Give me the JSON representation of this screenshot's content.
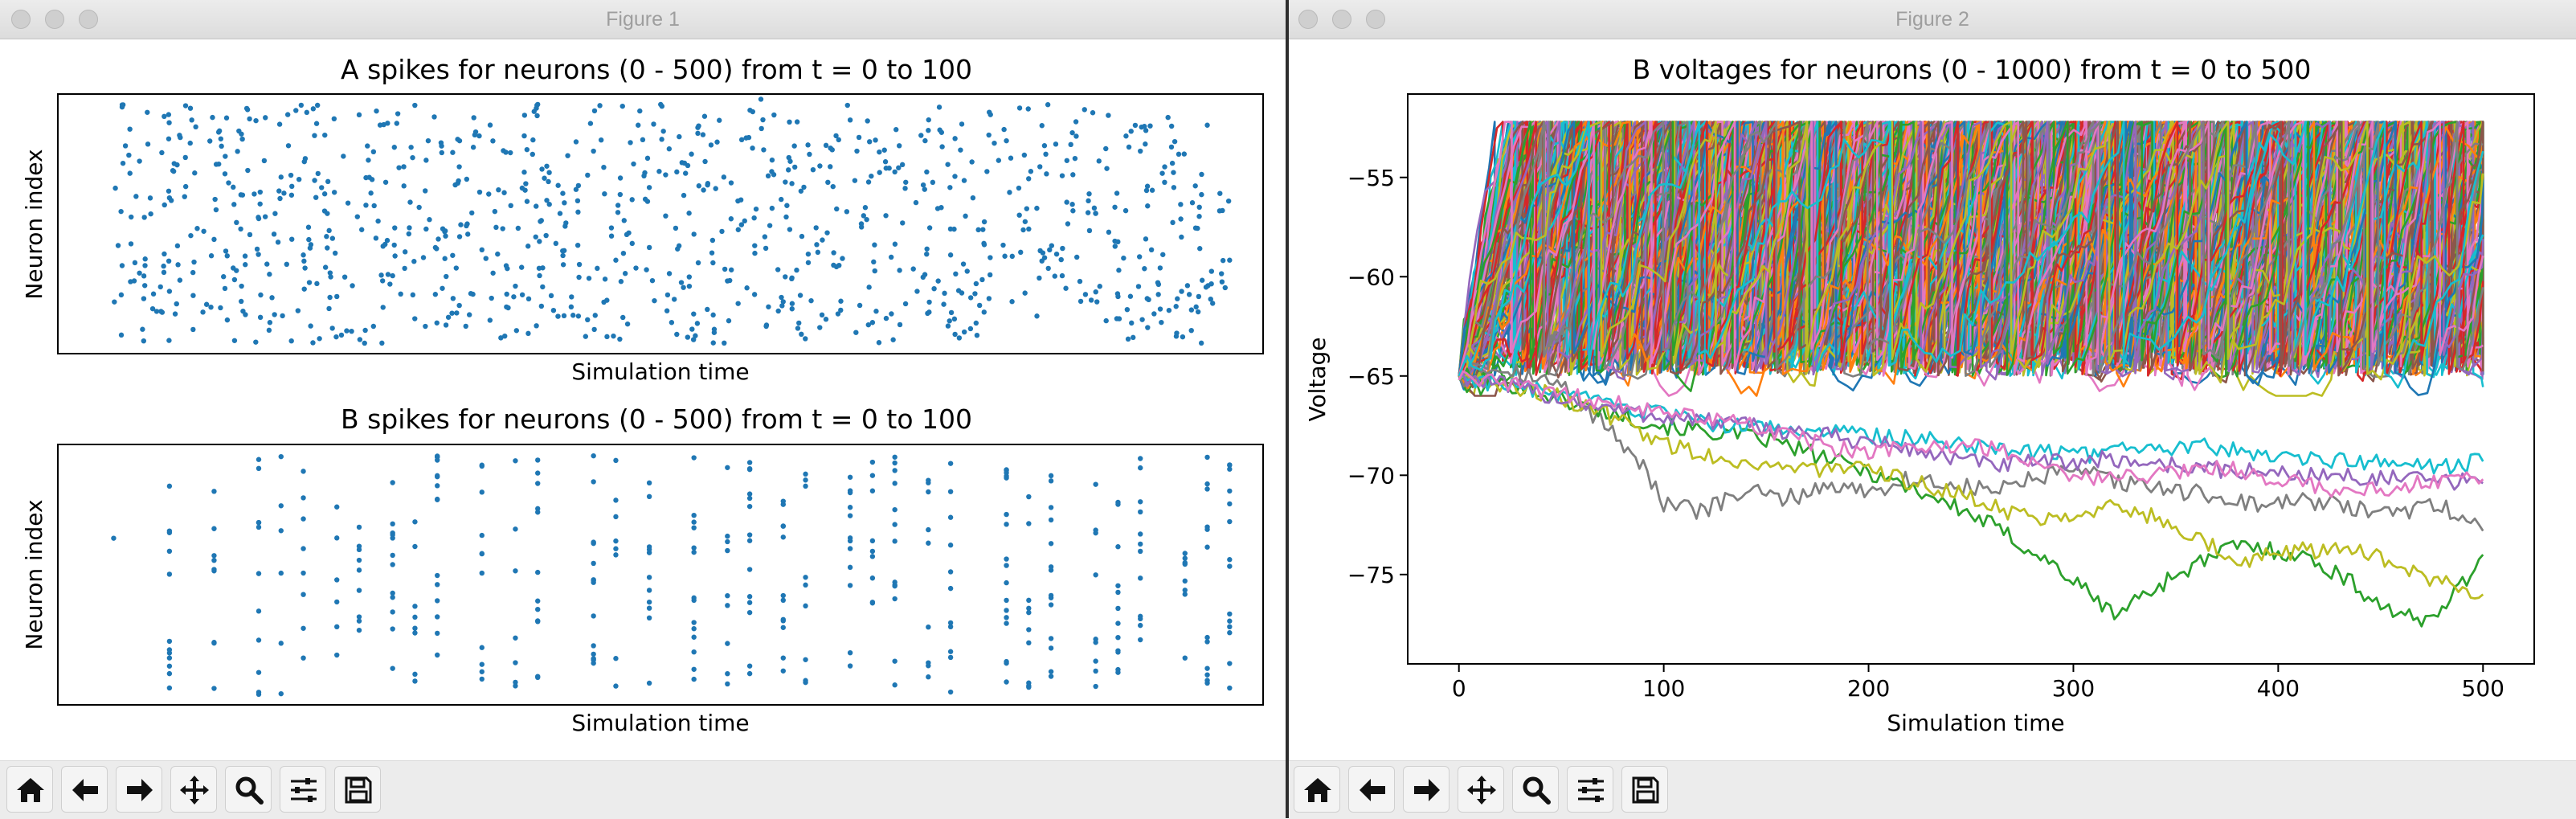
{
  "figure1": {
    "window_title": "Figure 1",
    "chart_data": [
      {
        "type": "scatter",
        "title": "A spikes for neurons (0 - 500) from t = 0 to 100",
        "xlabel": "Simulation time",
        "ylabel": "Neuron index",
        "xlim": [
          -5,
          103
        ],
        "ylim": [
          0,
          500
        ],
        "xticks": "hidden",
        "yticks": "hidden",
        "marker_color": "#1f77b4",
        "grid": false,
        "pattern": "uniformly scattered spike points, denser over t = 0 to 100",
        "series": [
          {
            "x": [
              5,
              5,
              7,
              8,
              9,
              10,
              11,
              12,
              13,
              14,
              15,
              17,
              18,
              20,
              21,
              22,
              25,
              26,
              28,
              30,
              31,
              33,
              35,
              36,
              38,
              40,
              41,
              43,
              45,
              47,
              48,
              50,
              52,
              53,
              55,
              58,
              59,
              60,
              61,
              63,
              64,
              65,
              66,
              67,
              68,
              70,
              72,
              73,
              75,
              77,
              78,
              80,
              82,
              83,
              85,
              87,
              88,
              90,
              92,
              93,
              95,
              97,
              98,
              100
            ],
            "y": [
              300,
              120,
              450,
              80,
              220,
              380,
              160,
              470,
              260,
              60,
              340,
              190,
              420,
              110,
              290,
              460,
              150,
              360,
              240,
              70,
              410,
              200,
              310,
              130,
              480,
              270,
              90,
              390,
              180,
              440,
              320,
              60,
              230,
              370,
              140,
              490,
              280,
              100,
              400,
              210,
              330,
              170,
              450,
              250,
              60,
              350,
              120,
              430,
              190,
              300,
              80,
              410,
              240,
              360,
              150,
              470,
              270,
              110,
              390,
              200,
              320,
              90,
              440,
              180
            ]
          }
        ]
      },
      {
        "type": "scatter",
        "title": "B spikes for neurons (0 - 500) from t = 0 to 100",
        "xlabel": "Simulation time",
        "ylabel": "Neuron index",
        "xlim": [
          -5,
          103
        ],
        "ylim": [
          0,
          500
        ],
        "xticks": "hidden",
        "yticks": "hidden",
        "marker_color": "#1f77b4",
        "grid": false,
        "pattern": "sparser spikes aligned in vertical columns",
        "series": [
          {
            "x": [
              0,
              5,
              5,
              9,
              9,
              9,
              13,
              13,
              17,
              17,
              20,
              20,
              20,
              25,
              25,
              29,
              29,
              33,
              33,
              38,
              38,
              38,
              43,
              43,
              48,
              48,
              52,
              52,
              57,
              57,
              62,
              62,
              66,
              66,
              70,
              70,
              75,
              75,
              80,
              80,
              84,
              84,
              88,
              88,
              92,
              92,
              96,
              96,
              100,
              100
            ],
            "y": [
              320,
              60,
              420,
              120,
              260,
              410,
              180,
              350,
              90,
              300,
              150,
              240,
              380,
              70,
              330,
              200,
              440,
              110,
              290,
              160,
              370,
              470,
              80,
              310,
              220,
              400,
              130,
              340,
              60,
              260,
              190,
              420,
              100,
              300,
              230,
              450,
              150,
              360,
              80,
              280,
              210,
              430,
              120,
              330,
              170,
              390,
              90,
              270,
              150,
              460
            ]
          }
        ]
      }
    ]
  },
  "figure2": {
    "window_title": "Figure 2",
    "chart_data": {
      "type": "line",
      "title": "B voltages for neurons (0 - 1000) from t = 0 to 500",
      "xlabel": "Simulation time",
      "ylabel": "Voltage",
      "xlim": [
        -25,
        525
      ],
      "ylim": [
        -79.5,
        -50.8
      ],
      "xticks": [
        0,
        100,
        200,
        300,
        400,
        500
      ],
      "yticks": [
        -55,
        -60,
        -65,
        -70,
        -75
      ],
      "grid": false,
      "band": {
        "top": -52.2,
        "bottom": -65,
        "description": "dense saturated band of many neuron traces between reset and threshold"
      },
      "palette": [
        "#1f77b4",
        "#ff7f0e",
        "#2ca02c",
        "#d62728",
        "#9467bd",
        "#8c564b",
        "#e377c2",
        "#7f7f7f",
        "#bcbd22",
        "#17becf"
      ],
      "series": [
        {
          "color": "#7f7f7f",
          "x": [
            0,
            20,
            50,
            75,
            90,
            100,
            120,
            140,
            160,
            180,
            200,
            220,
            240,
            260,
            280,
            300,
            330,
            360,
            390,
            420,
            450,
            480,
            500
          ],
          "y": [
            -65,
            -64.5,
            -65.5,
            -67.8,
            -69.5,
            -71.5,
            -71.8,
            -70.8,
            -71.2,
            -70.5,
            -70.8,
            -70.2,
            -70.5,
            -70.8,
            -70.2,
            -69.8,
            -70.5,
            -70.9,
            -71.5,
            -71.3,
            -72,
            -71.5,
            -72.8
          ]
        },
        {
          "color": "#2ca02c",
          "x": [
            0,
            30,
            60,
            100,
            150,
            200,
            230,
            260,
            290,
            320,
            350,
            380,
            410,
            430,
            450,
            470,
            490,
            500
          ],
          "y": [
            -65,
            -65.5,
            -66.5,
            -67.5,
            -68.2,
            -69.8,
            -71,
            -72.5,
            -74.5,
            -77,
            -75,
            -73.5,
            -74,
            -75,
            -76.5,
            -77.5,
            -75.5,
            -74
          ]
        },
        {
          "color": "#bcbd22",
          "x": [
            0,
            40,
            70,
            100,
            130,
            160,
            200,
            240,
            280,
            320,
            350,
            380,
            410,
            440,
            470,
            500
          ],
          "y": [
            -65,
            -65.8,
            -66.8,
            -68.4,
            -69.2,
            -69.6,
            -69.8,
            -70.8,
            -72.2,
            -71.5,
            -72.5,
            -74.3,
            -73.8,
            -73.6,
            -75.2,
            -76
          ]
        },
        {
          "color": "#17becf",
          "x": [
            0,
            60,
            120,
            180,
            240,
            300,
            360,
            420,
            480,
            500
          ],
          "y": [
            -65,
            -66.2,
            -67.4,
            -67.8,
            -68.3,
            -69,
            -68.5,
            -69.2,
            -69.6,
            -69.3
          ]
        },
        {
          "color": "#9467bd",
          "x": [
            0,
            80,
            140,
            200,
            260,
            320,
            380,
            440,
            500
          ],
          "y": [
            -65,
            -66.8,
            -67.5,
            -68.3,
            -69.5,
            -69.2,
            -69.8,
            -70.1,
            -70.4
          ]
        },
        {
          "color": "#e377c2",
          "x": [
            0,
            70,
            130,
            190,
            250,
            310,
            370,
            430,
            500
          ],
          "y": [
            -65,
            -66.3,
            -67.2,
            -68.8,
            -68.4,
            -70.2,
            -69.6,
            -70.8,
            -70.2
          ]
        }
      ]
    }
  },
  "toolbar": {
    "buttons": [
      {
        "name": "home-button",
        "icon": "home-icon"
      },
      {
        "name": "back-button",
        "icon": "arrow-left-icon"
      },
      {
        "name": "forward-button",
        "icon": "arrow-right-icon"
      },
      {
        "name": "pan-button",
        "icon": "move-arrows-icon"
      },
      {
        "name": "zoom-button",
        "icon": "magnifier-icon"
      },
      {
        "name": "subplots-button",
        "icon": "sliders-icon"
      },
      {
        "name": "save-button",
        "icon": "floppy-disk-icon"
      }
    ]
  }
}
